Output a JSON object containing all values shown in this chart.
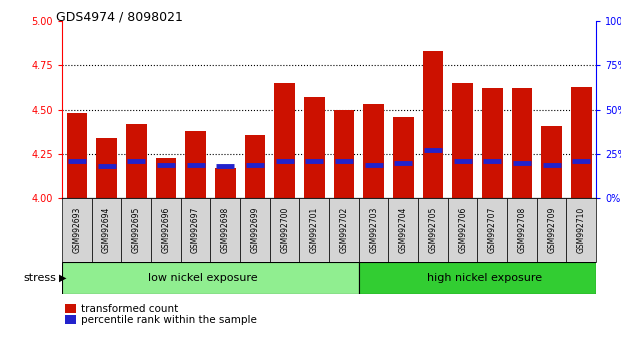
{
  "title": "GDS4974 / 8098021",
  "samples": [
    "GSM992693",
    "GSM992694",
    "GSM992695",
    "GSM992696",
    "GSM992697",
    "GSM992698",
    "GSM992699",
    "GSM992700",
    "GSM992701",
    "GSM992702",
    "GSM992703",
    "GSM992704",
    "GSM992705",
    "GSM992706",
    "GSM992707",
    "GSM992708",
    "GSM992709",
    "GSM992710"
  ],
  "transformed_count": [
    4.48,
    4.34,
    4.42,
    4.23,
    4.38,
    4.17,
    4.36,
    4.65,
    4.57,
    4.5,
    4.53,
    4.46,
    4.83,
    4.65,
    4.62,
    4.62,
    4.41,
    4.63
  ],
  "percentile_rank": [
    21,
    18,
    21,
    19,
    19,
    18,
    19,
    21,
    21,
    21,
    19,
    20,
    27,
    21,
    21,
    20,
    19,
    21
  ],
  "ylim_left": [
    4.0,
    5.0
  ],
  "ylim_right": [
    0,
    100
  ],
  "yticks_left": [
    4.0,
    4.25,
    4.5,
    4.75,
    5.0
  ],
  "yticks_right": [
    0,
    25,
    50,
    75,
    100
  ],
  "bar_color": "#CC1100",
  "dot_color": "#2222CC",
  "grid_color": "black",
  "group1_label": "low nickel exposure",
  "group1_color": "#90EE90",
  "group2_label": "high nickel exposure",
  "group2_color": "#32CD32",
  "group1_count": 10,
  "stress_label": "stress",
  "legend_red": "transformed count",
  "legend_blue": "percentile rank within the sample",
  "base": 4.0
}
